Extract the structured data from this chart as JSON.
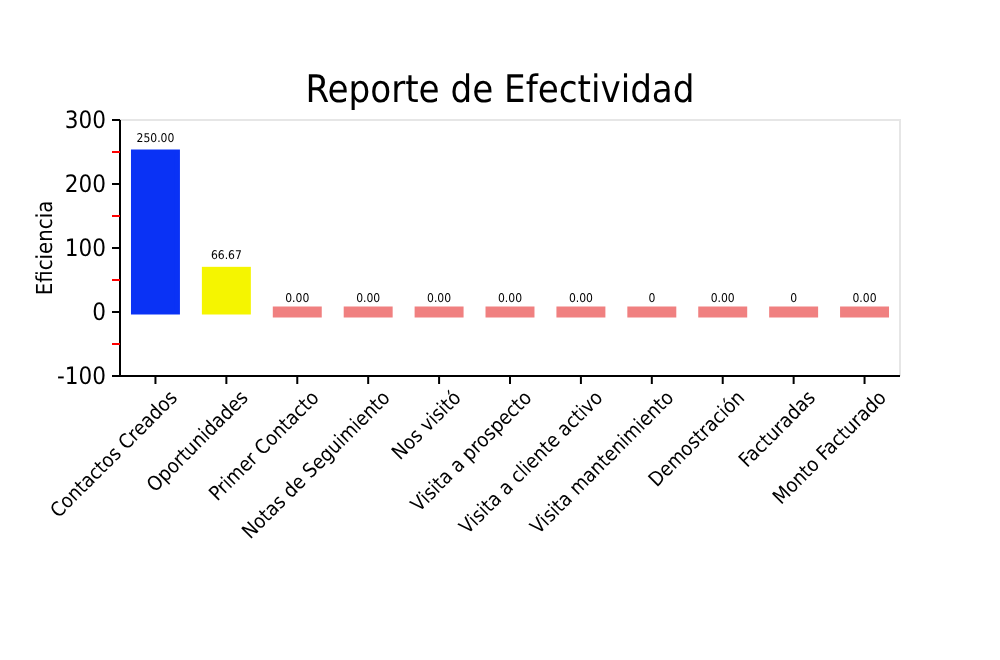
{
  "chart_data": {
    "type": "bar",
    "title": "Reporte de Efectividad",
    "ylabel": "Eficiencia",
    "categories": [
      "Contactos Creados",
      "Oportunidades",
      "Primer Contacto",
      "Notas de Seguimiento",
      "Nos visitó",
      "Visita a prospecto",
      "Visita a cliente activo",
      "Visita mantenimiento",
      "Demostración",
      "Facturadas",
      "Monto Facturado"
    ],
    "values": [
      250,
      66.67,
      0,
      0,
      0,
      0,
      0,
      0,
      0,
      0,
      0
    ],
    "colors": [
      "#0a32f5",
      "#f5f500",
      "#f08080",
      "#f08080",
      "#f08080",
      "#f08080",
      "#f08080",
      "#f08080",
      "#f08080",
      "#f08080",
      "#f08080"
    ],
    "value_labels": [
      "250.00",
      "66.67",
      "0.00",
      "0.00",
      "0.00",
      "0.00",
      "0.00",
      "0",
      "0.00",
      "0",
      "0.00"
    ],
    "ylim": [
      -100,
      300
    ],
    "yticks": [
      -100,
      {
        "value": -50,
        "label": null
      },
      0,
      {
        "value": 50,
        "label": null
      },
      100,
      {
        "value": 150,
        "label": null
      },
      200,
      {
        "value": 250,
        "label": null
      },
      300
    ],
    "grid": false
  }
}
